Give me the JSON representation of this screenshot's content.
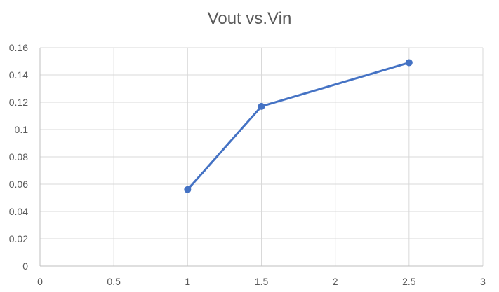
{
  "chart_data": {
    "type": "scatter",
    "title": "Vout vs.Vin",
    "xlabel": "",
    "ylabel": "",
    "xlim": [
      0,
      3
    ],
    "ylim": [
      0,
      0.16
    ],
    "x_ticks": [
      "0",
      "0.5",
      "1",
      "1.5",
      "2",
      "2.5",
      "3"
    ],
    "y_ticks": [
      "0",
      "0.02",
      "0.04",
      "0.06",
      "0.08",
      "0.1",
      "0.12",
      "0.14",
      "0.16"
    ],
    "grid": true,
    "legend": "none",
    "series": [
      {
        "x": [
          1,
          1.5,
          2.5
        ],
        "y": [
          0.056,
          0.117,
          0.149
        ],
        "color": "#4472C4",
        "line": "straight",
        "markers": true
      }
    ]
  }
}
